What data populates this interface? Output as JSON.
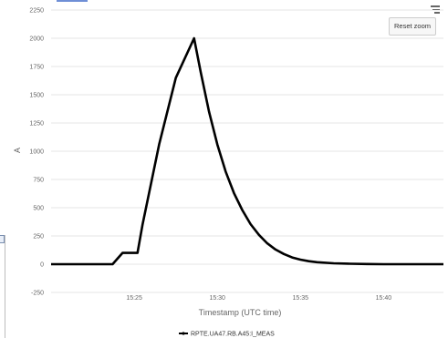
{
  "chart_data": {
    "type": "line",
    "title": "",
    "xlabel": "Timestamp (UTC time)",
    "ylabel": "A",
    "ylim": [
      -250,
      2250
    ],
    "y_ticks": [
      -250,
      0,
      250,
      500,
      750,
      1000,
      1250,
      1500,
      1750,
      2000,
      2250
    ],
    "y_tick_labels": [
      "-250",
      "0",
      "250",
      "500",
      "750",
      "1000",
      "1250",
      "1500",
      "1750",
      "2000",
      "2250"
    ],
    "x_unit": "minutes",
    "xlim": [
      "15:20",
      "15:43.6"
    ],
    "x_ticks": [
      "15:25",
      "15:30",
      "15:35",
      "15:40"
    ],
    "x_tick_labels": [
      "15:25",
      "15:30",
      "15:35",
      "15:40"
    ],
    "grid": "horizontal",
    "legend_position": "bottom-center",
    "series": [
      {
        "name": "RPTE.UA47.RB.A45:I_MEAS",
        "color": "#000000",
        "points": [
          [
            "15:20",
            0
          ],
          [
            "15:23.7",
            0
          ],
          [
            "15:24.3",
            100
          ],
          [
            "15:25.2",
            100
          ],
          [
            "15:25.5",
            350
          ],
          [
            "15:26.5",
            1060
          ],
          [
            "15:27.5",
            1650
          ],
          [
            "15:28.6",
            2000
          ],
          [
            "15:29.0",
            1700
          ],
          [
            "15:29.5",
            1350
          ],
          [
            "15:30.0",
            1060
          ],
          [
            "15:30.5",
            820
          ],
          [
            "15:31.0",
            630
          ],
          [
            "15:31.5",
            480
          ],
          [
            "15:32.0",
            355
          ],
          [
            "15:32.5",
            260
          ],
          [
            "15:33.0",
            185
          ],
          [
            "15:33.5",
            130
          ],
          [
            "15:34.0",
            90
          ],
          [
            "15:34.5",
            60
          ],
          [
            "15:35.0",
            40
          ],
          [
            "15:35.5",
            27
          ],
          [
            "15:36.0",
            18
          ],
          [
            "15:37.0",
            8
          ],
          [
            "15:38.0",
            4
          ],
          [
            "15:39.0",
            2
          ],
          [
            "15:40.0",
            0
          ],
          [
            "15:43.6",
            0
          ]
        ]
      }
    ]
  },
  "controls": {
    "reset_zoom_label": "Reset zoom",
    "menu_icon": "hamburger-menu-icon"
  }
}
